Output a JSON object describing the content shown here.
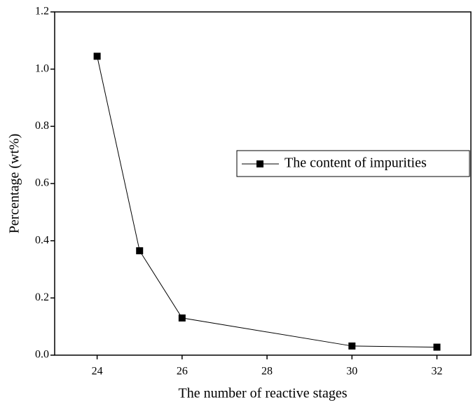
{
  "chart_data": {
    "type": "line",
    "x_label": "The number of reactive stages",
    "y_label": "Percentage (wt%)",
    "x": [
      24,
      25,
      26,
      30,
      32
    ],
    "series": [
      {
        "name": "The content of impurities",
        "color": "#000000",
        "values": [
          1.045,
          0.365,
          0.13,
          0.032,
          0.028
        ]
      }
    ],
    "xlim": [
      23,
      32.8
    ],
    "xticks": [
      24,
      26,
      28,
      30,
      32
    ],
    "ylim": [
      0,
      1.2
    ],
    "yticks": [
      {
        "value": 0,
        "label": "0.0"
      },
      0.2,
      0.4,
      0.6,
      0.8,
      {
        "value": 1.0,
        "label": "1.0"
      },
      1.2
    ],
    "grid": false,
    "legend": "right"
  }
}
